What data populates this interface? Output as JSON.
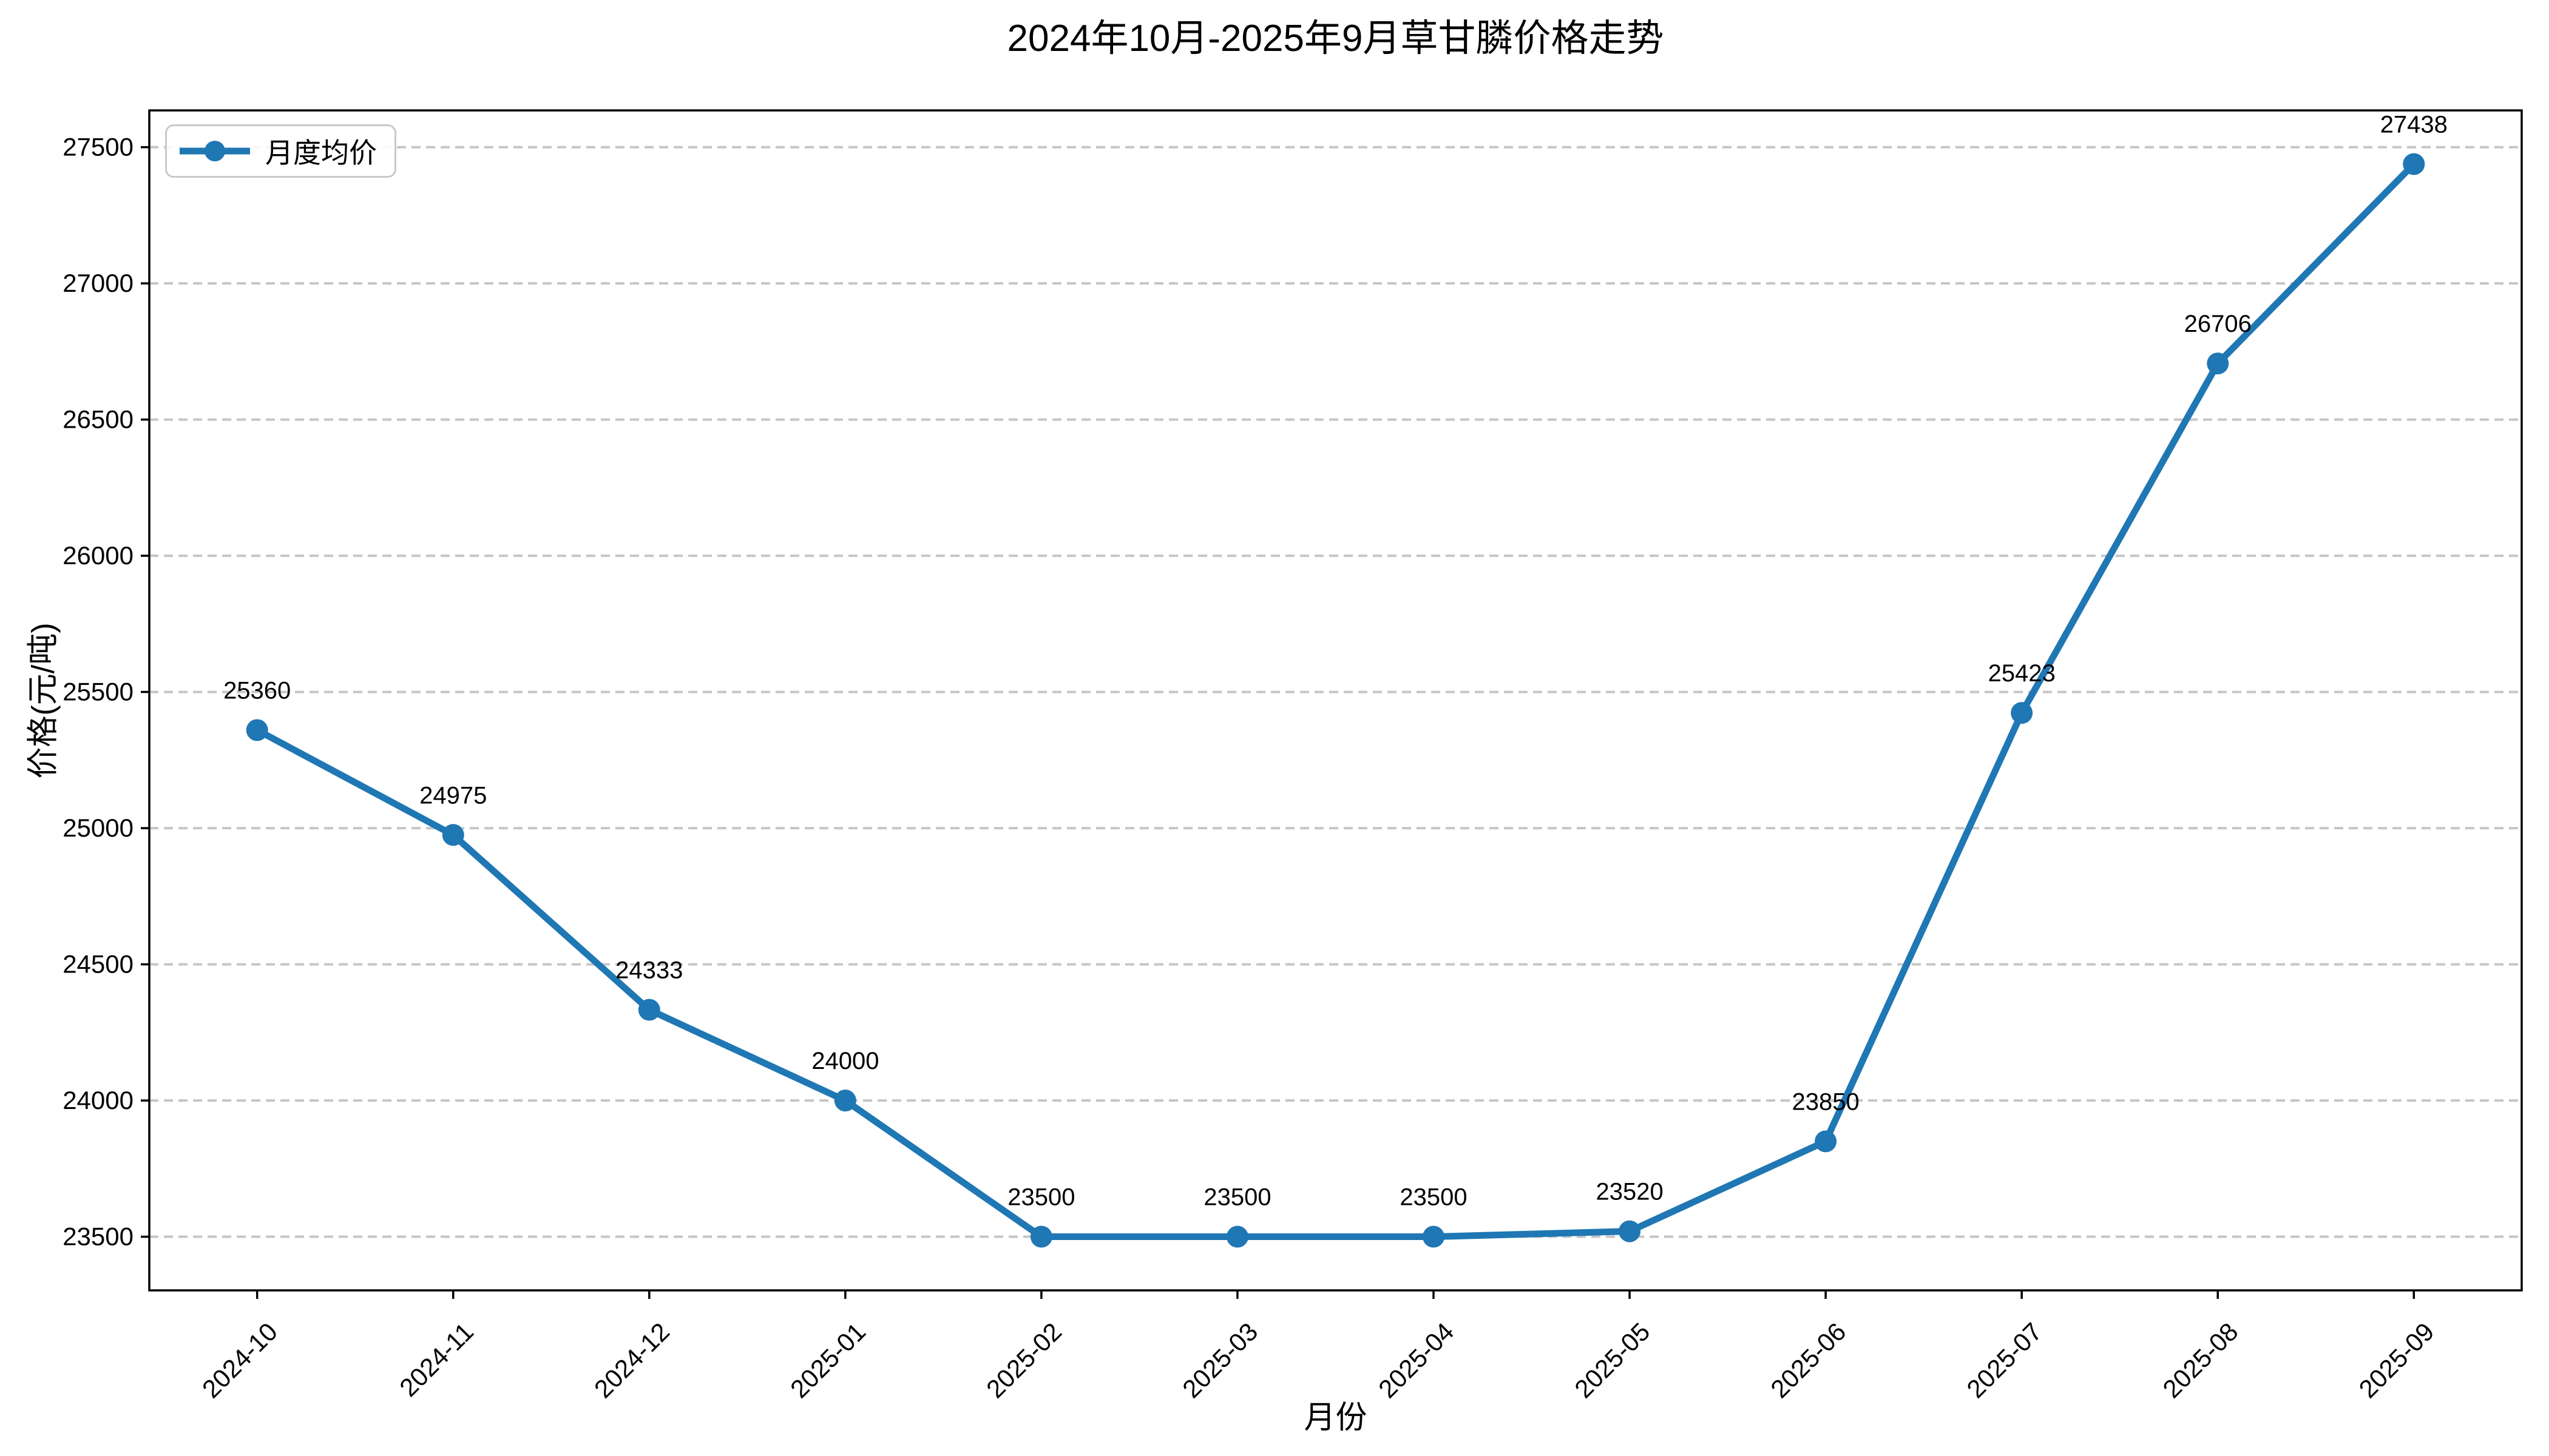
{
  "page": {
    "background": "#ffffff"
  },
  "chart_data": {
    "type": "line",
    "title": "2024年10月-2025年9月草甘膦价格走势",
    "xlabel": "月份",
    "ylabel": "价格(元/吨)",
    "categories": [
      "2024-10",
      "2024-11",
      "2024-12",
      "2025-01",
      "2025-02",
      "2025-03",
      "2025-04",
      "2025-05",
      "2025-06",
      "2025-07",
      "2025-08",
      "2025-09"
    ],
    "series": [
      {
        "name": "月度均价",
        "color": "#1f77b4",
        "values": [
          25360,
          24975,
          24333,
          24000,
          23500,
          23500,
          23500,
          23520,
          23850,
          25423,
          26706,
          27438
        ]
      }
    ],
    "point_labels": [
      "25360",
      "24975",
      "24333",
      "24000",
      "23500",
      "23500",
      "23500",
      "23520",
      "23850",
      "25423",
      "26706",
      "27438"
    ],
    "y_ticks": [
      23500,
      24000,
      24500,
      25000,
      25500,
      26000,
      26500,
      27000,
      27500
    ],
    "ylim": [
      23303,
      27635
    ],
    "x_category_margin": 0.55,
    "grid": {
      "axis": "y",
      "style": "dashed",
      "color": "#c6c6c6"
    },
    "legend": {
      "position": "upper-left",
      "entries": [
        {
          "label": "月度均价",
          "color": "#1f77b4"
        }
      ]
    }
  },
  "style": {
    "axis_color": "#000000",
    "text_color": "#000000",
    "grid_color": "#c6c6c6",
    "line_color": "#1f77b4",
    "legend_border_color": "#c9c9c9"
  }
}
